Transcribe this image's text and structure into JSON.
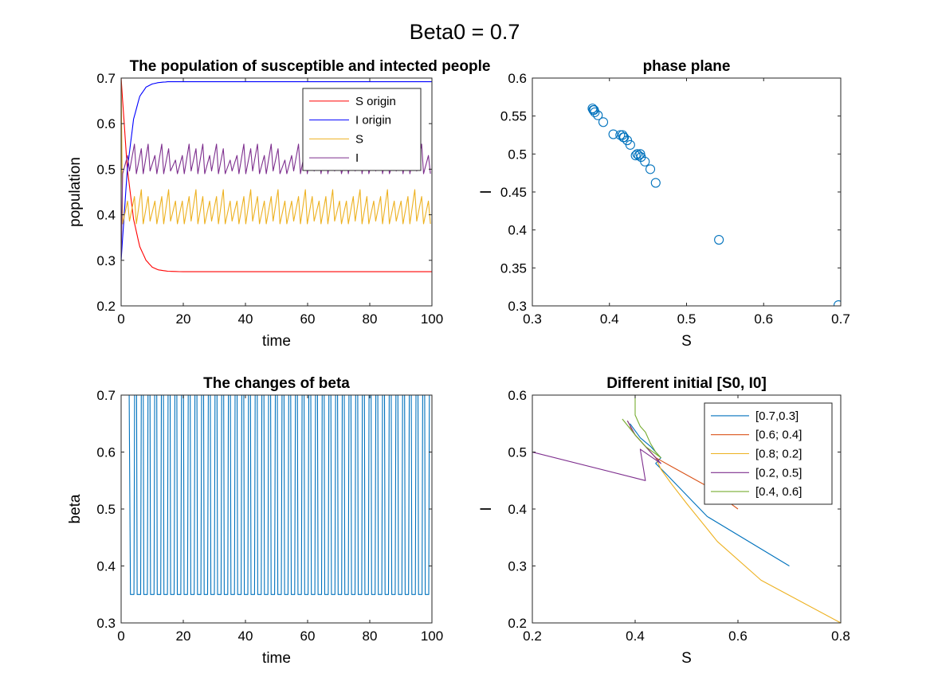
{
  "suptitle": "Beta0 = 0.7",
  "chart_data": [
    {
      "type": "line",
      "title": "The population of susceptible and intected people",
      "xlabel": "time",
      "ylabel": "population",
      "xlim": [
        0,
        100
      ],
      "ylim": [
        0.2,
        0.7
      ],
      "xticks": [
        "0",
        "20",
        "40",
        "60",
        "80",
        "100"
      ],
      "yticks": [
        "0.2",
        "0.3",
        "0.4",
        "0.5",
        "0.6",
        "0.7"
      ],
      "legend_position": "top-right",
      "series": [
        {
          "name": "S origin",
          "color": "#ff0000",
          "curve": "decay",
          "x": [
            0,
            2,
            4,
            6,
            8,
            10,
            12,
            15,
            20,
            30,
            50,
            100
          ],
          "y": [
            0.7,
            0.5,
            0.39,
            0.33,
            0.3,
            0.285,
            0.279,
            0.276,
            0.275,
            0.275,
            0.275,
            0.275
          ]
        },
        {
          "name": "I origin",
          "color": "#0000ff",
          "curve": "rise",
          "x": [
            0,
            2,
            4,
            6,
            8,
            10,
            12,
            15,
            20,
            30,
            50,
            100
          ],
          "y": [
            0.3,
            0.5,
            0.61,
            0.66,
            0.68,
            0.687,
            0.69,
            0.692,
            0.692,
            0.692,
            0.692,
            0.692
          ]
        },
        {
          "name": "S",
          "color": "#edb120",
          "curve": "sawtooth",
          "start": [
            0,
            0.7
          ],
          "period": 2.2,
          "low": 0.38,
          "high": [
            0.43,
            0.44,
            0.455,
            0.44,
            0.43,
            0.44,
            0.455,
            0.43
          ]
        },
        {
          "name": "I",
          "color": "#7e2f8e",
          "curve": "sawtooth",
          "start": [
            0,
            0.3
          ],
          "period": 2.2,
          "low": 0.49,
          "high": [
            0.53,
            0.555,
            0.545,
            0.555,
            0.53,
            0.555,
            0.545,
            0.52
          ]
        }
      ]
    },
    {
      "type": "scatter",
      "title": "phase plane",
      "xlabel": "S",
      "ylabel": "I",
      "xlim": [
        0.3,
        0.7
      ],
      "ylim": [
        0.3,
        0.6
      ],
      "xticks": [
        "0.3",
        "0.4",
        "0.5",
        "0.6",
        "0.7"
      ],
      "yticks": [
        "0.3",
        "0.35",
        "0.4",
        "0.45",
        "0.5",
        "0.55",
        "0.6"
      ],
      "series": [
        {
          "color": "#0072bd",
          "x": [
            0.697,
            0.542,
            0.46,
            0.453,
            0.446,
            0.441,
            0.438,
            0.436,
            0.434,
            0.44,
            0.427,
            0.423,
            0.419,
            0.417,
            0.414,
            0.418,
            0.405,
            0.392,
            0.385,
            0.381,
            0.379,
            0.378,
            0.38
          ],
          "y": [
            0.301,
            0.387,
            0.462,
            0.48,
            0.49,
            0.496,
            0.498,
            0.5,
            0.498,
            0.5,
            0.512,
            0.518,
            0.522,
            0.525,
            0.525,
            0.522,
            0.526,
            0.542,
            0.551,
            0.555,
            0.558,
            0.56,
            0.558
          ]
        }
      ]
    },
    {
      "type": "line",
      "title": "The changes of beta",
      "xlabel": "time",
      "ylabel": "beta",
      "xlim": [
        0,
        100
      ],
      "ylim": [
        0.3,
        0.7
      ],
      "xticks": [
        "0",
        "20",
        "40",
        "60",
        "80",
        "100"
      ],
      "yticks": [
        "0.3",
        "0.4",
        "0.5",
        "0.6",
        "0.7"
      ],
      "series": [
        {
          "color": "#0072bd",
          "curve": "square",
          "high": 0.7,
          "low": 0.35,
          "first_drop": 3,
          "pulses": 45
        }
      ]
    },
    {
      "type": "line",
      "title": "Different initial [S0, I0]",
      "xlabel": "S",
      "ylabel": "I",
      "xlim": [
        0.2,
        0.8
      ],
      "ylim": [
        0.2,
        0.6
      ],
      "xticks": [
        "0.2",
        "0.4",
        "0.6",
        "0.8"
      ],
      "yticks": [
        "0.2",
        "0.3",
        "0.4",
        "0.5",
        "0.6"
      ],
      "legend_position": "top-right",
      "series": [
        {
          "name": "[0.7,0.3]",
          "color": "#0072bd",
          "x": [
            0.7,
            0.54,
            0.46,
            0.44,
            0.45,
            0.43,
            0.41,
            0.39
          ],
          "y": [
            0.3,
            0.387,
            0.462,
            0.48,
            0.49,
            0.51,
            0.525,
            0.55
          ]
        },
        {
          "name": "[0.6; 0.4]",
          "color": "#d95319",
          "x": [
            0.6,
            0.54,
            0.47,
            0.45,
            0.44,
            0.42,
            0.4,
            0.39
          ],
          "y": [
            0.4,
            0.44,
            0.475,
            0.485,
            0.49,
            0.51,
            0.53,
            0.545
          ]
        },
        {
          "name": "[0.8; 0.2]",
          "color": "#edb120",
          "x": [
            0.8,
            0.645,
            0.56,
            0.5,
            0.47,
            0.45,
            0.44,
            0.42,
            0.4,
            0.385
          ],
          "y": [
            0.2,
            0.275,
            0.343,
            0.41,
            0.445,
            0.47,
            0.49,
            0.51,
            0.53,
            0.555
          ]
        },
        {
          "name": "[0.2, 0.5]",
          "color": "#7e2f8e",
          "x": [
            0.2,
            0.42,
            0.41,
            0.45,
            0.44,
            0.42,
            0.4,
            0.385
          ],
          "y": [
            0.5,
            0.45,
            0.505,
            0.48,
            0.49,
            0.51,
            0.53,
            0.555
          ]
        },
        {
          "name": "[0.4, 0.6]",
          "color": "#77ac30",
          "x": [
            0.4,
            0.4,
            0.41,
            0.42,
            0.43,
            0.44,
            0.45,
            0.42,
            0.4,
            0.375
          ],
          "y": [
            0.6,
            0.565,
            0.545,
            0.535,
            0.515,
            0.5,
            0.49,
            0.51,
            0.53,
            0.558
          ]
        }
      ]
    }
  ]
}
